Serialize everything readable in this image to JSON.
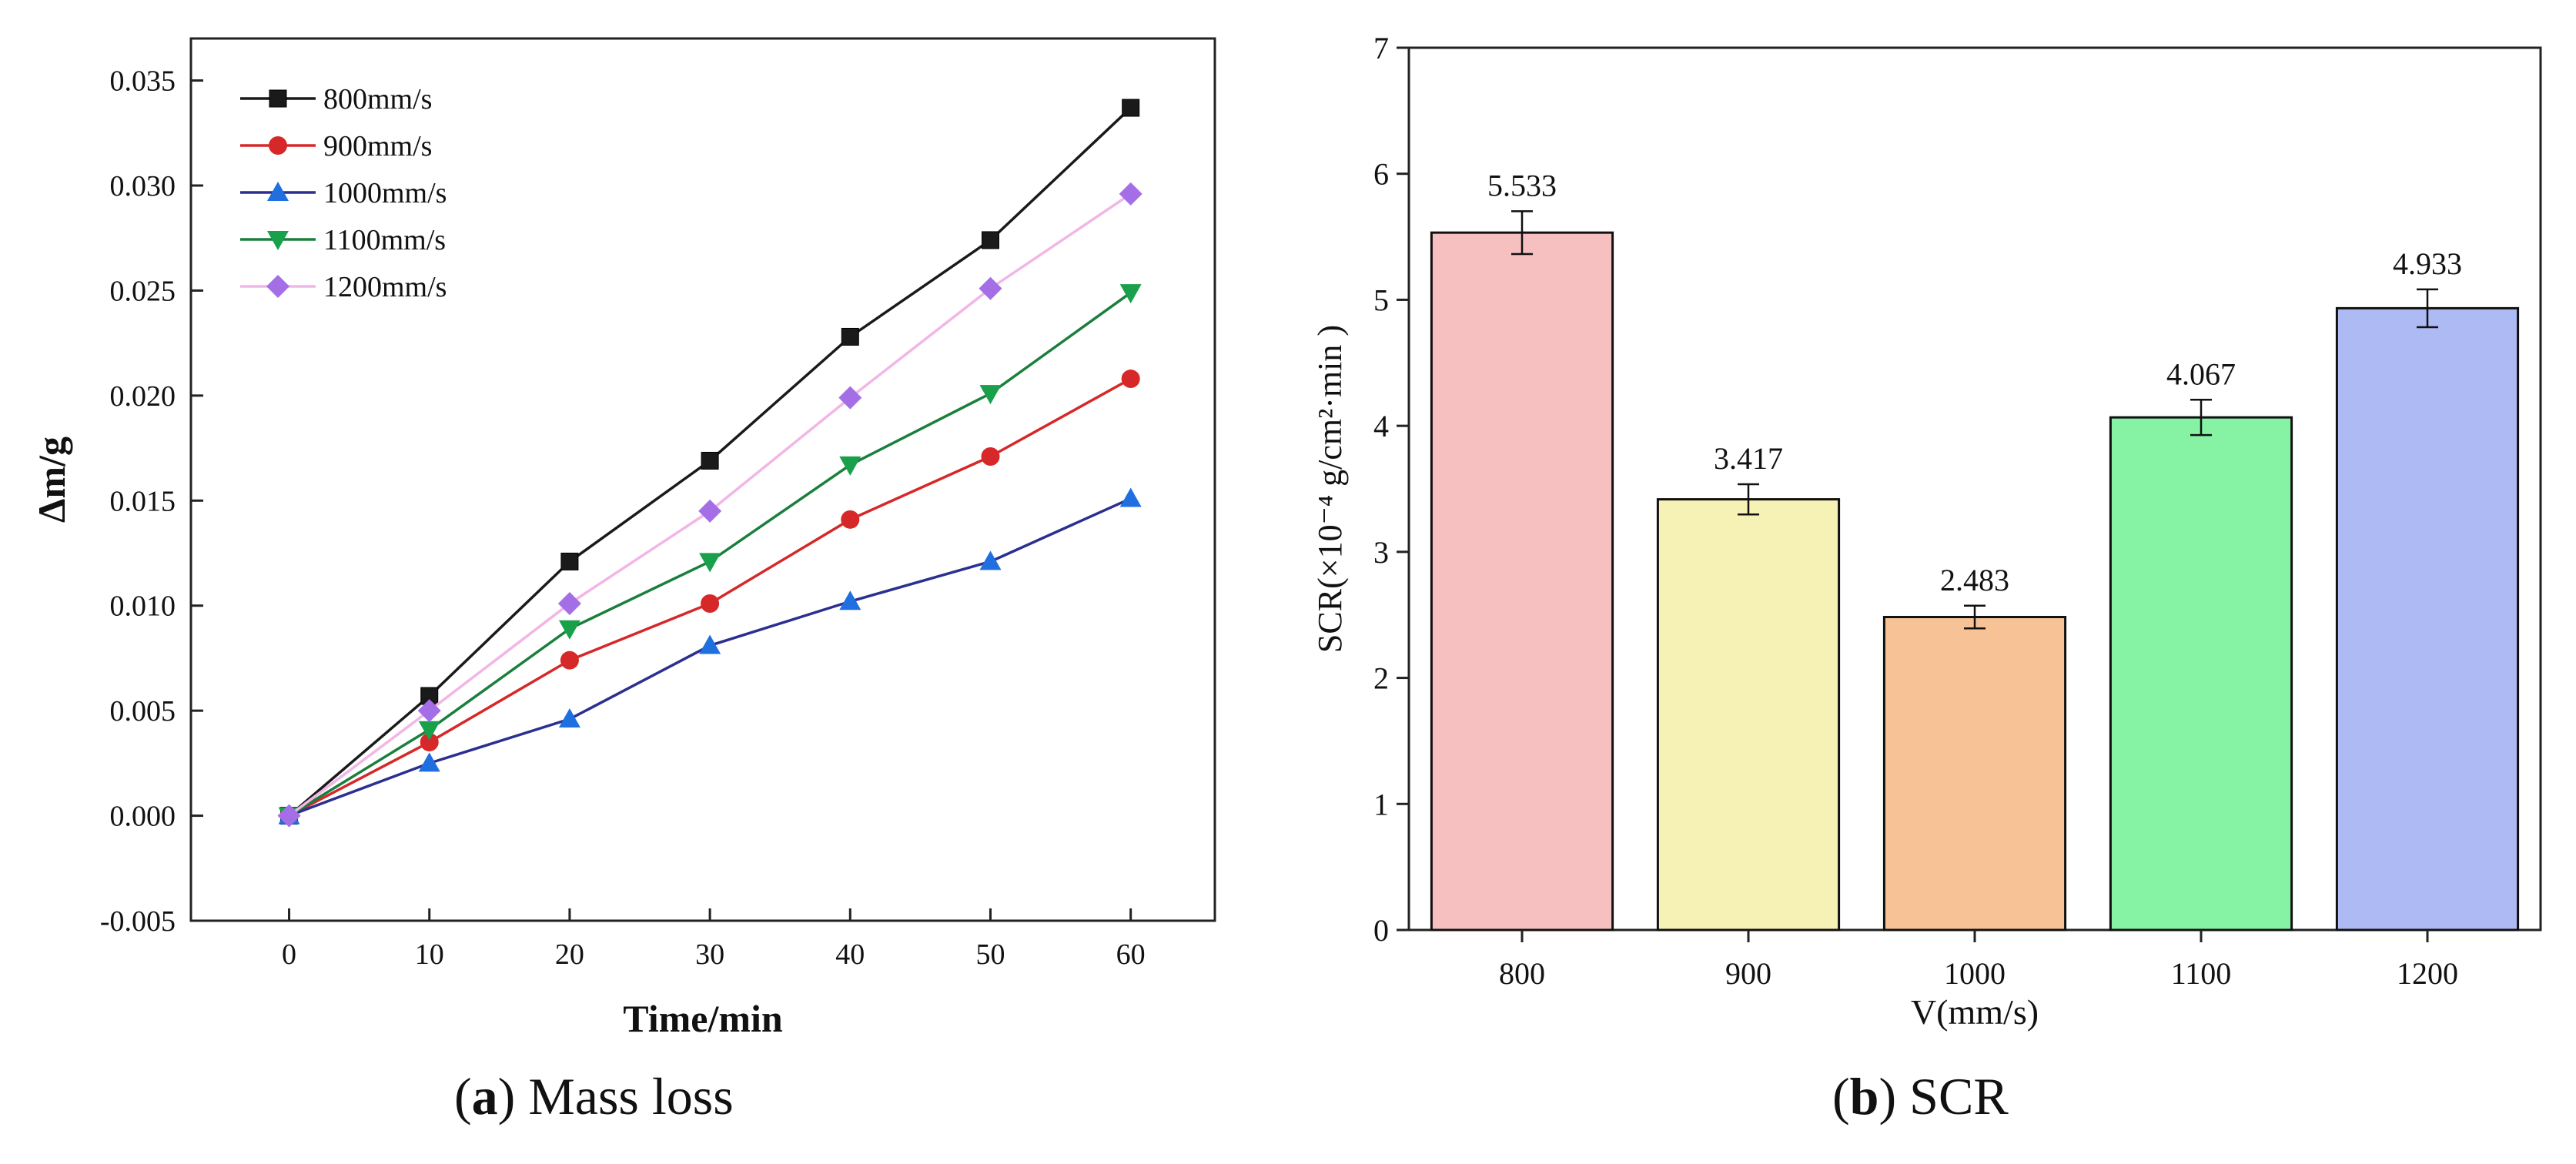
{
  "captions": {
    "a": {
      "letter": "a",
      "text": "Mass loss"
    },
    "b": {
      "letter": "b",
      "text": "SCR"
    }
  },
  "chart_data": [
    {
      "type": "line",
      "xlabel": "Time/min",
      "ylabel": "Δm/g",
      "xlim": [
        -7,
        66
      ],
      "ylim": [
        -0.005,
        0.037
      ],
      "x_ticks": [
        0,
        10,
        20,
        30,
        40,
        50,
        60
      ],
      "y_ticks": [
        -0.005,
        0.0,
        0.005,
        0.01,
        0.015,
        0.02,
        0.025,
        0.03,
        0.035
      ],
      "y_tick_labels": [
        "-0.005",
        "0.000",
        "0.005",
        "0.010",
        "0.015",
        "0.020",
        "0.025",
        "0.030",
        "0.035"
      ],
      "legend_position": "top-left",
      "grid": false,
      "x": [
        0,
        10,
        20,
        30,
        40,
        50,
        60
      ],
      "series": [
        {
          "name": "800mm/s",
          "color": "#1a1a1a",
          "marker": "square",
          "values": [
            0,
            0.0057,
            0.0121,
            0.0169,
            0.0228,
            0.0274,
            0.0337
          ]
        },
        {
          "name": "900mm/s",
          "color": "#d62828",
          "marker": "circle",
          "values": [
            0,
            0.0035,
            0.0074,
            0.0101,
            0.0141,
            0.0171,
            0.0208
          ]
        },
        {
          "name": "1000mm/s",
          "color": "#1f6fe0",
          "marker": "triangle-up",
          "line_color": "#2b2f8f",
          "values": [
            0,
            0.0025,
            0.0046,
            0.0081,
            0.0102,
            0.0121,
            0.0151
          ]
        },
        {
          "name": "1100mm/s",
          "color": "#18a04a",
          "marker": "triangle-down",
          "line_color": "#1a7f3c",
          "values": [
            0,
            0.0041,
            0.0089,
            0.0121,
            0.0167,
            0.0201,
            0.0249
          ]
        },
        {
          "name": "1200mm/s",
          "color": "#a46ee6",
          "marker": "diamond",
          "line_color": "#f2b6e6",
          "values": [
            0,
            0.005,
            0.0101,
            0.0145,
            0.0199,
            0.0251,
            0.0296
          ]
        }
      ]
    },
    {
      "type": "bar",
      "xlabel": "V(mm/s)",
      "ylabel": "SCR(×10⁻⁴ g/cm²·min )",
      "ylim": [
        0,
        7
      ],
      "y_ticks": [
        0,
        1,
        2,
        3,
        4,
        5,
        6,
        7
      ],
      "categories": [
        "800",
        "900",
        "1000",
        "1100",
        "1200"
      ],
      "values": [
        5.533,
        3.417,
        2.483,
        4.067,
        4.933
      ],
      "value_labels": [
        "5.533",
        "3.417",
        "2.483",
        "4.067",
        "4.933"
      ],
      "errors": [
        0.17,
        0.12,
        0.09,
        0.14,
        0.15
      ],
      "colors": [
        "#f7c0c0",
        "#f6f1b5",
        "#f7c396",
        "#85f2a4",
        "#aebaf4"
      ],
      "grid": false
    }
  ]
}
